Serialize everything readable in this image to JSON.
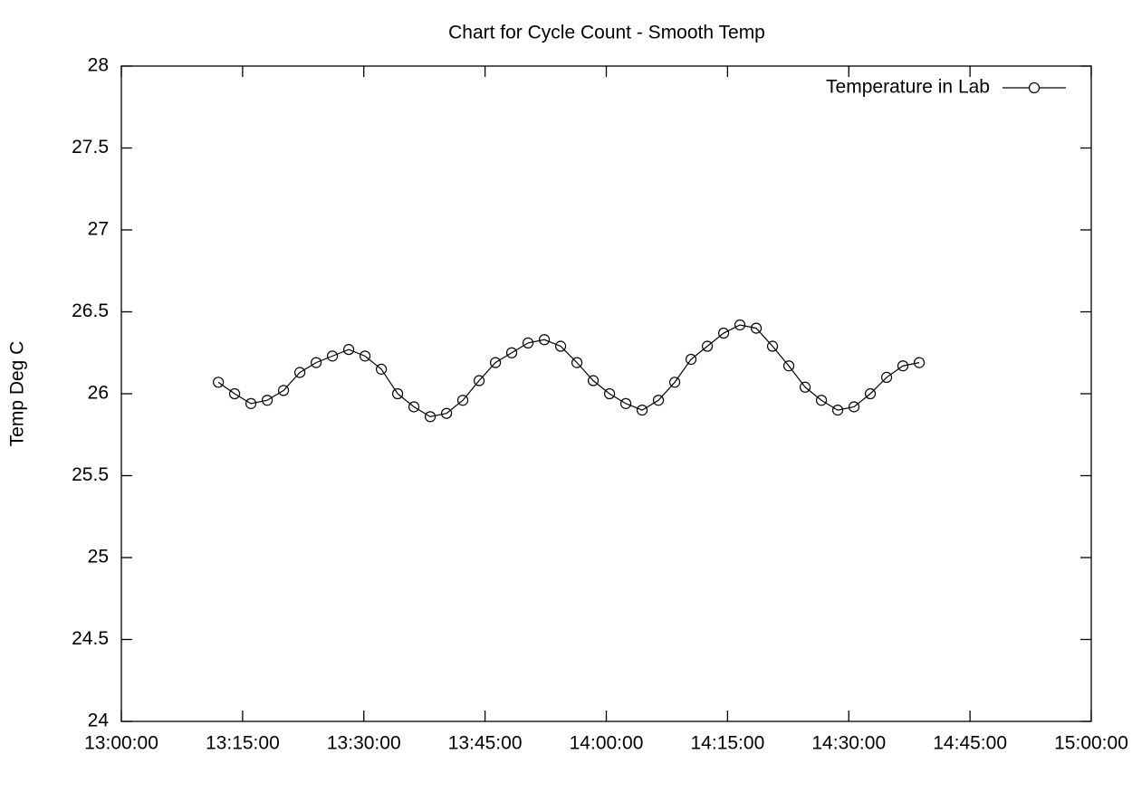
{
  "chart_data": {
    "type": "line",
    "title": "Chart for Cycle Count - Smooth Temp",
    "y_label": "Temp Deg C",
    "x": [
      "13:12:00",
      "13:14:01",
      "13:16:02",
      "13:18:03",
      "13:20:04",
      "13:22:05",
      "13:24:06",
      "13:26:07",
      "13:28:08",
      "13:30:09",
      "13:32:10",
      "13:34:11",
      "13:36:12",
      "13:38:13",
      "13:40:14",
      "13:42:15",
      "13:44:16",
      "13:46:17",
      "13:48:18",
      "13:50:19",
      "13:52:20",
      "13:54:21",
      "13:56:22",
      "13:58:23",
      "14:00:24",
      "14:02:25",
      "14:04:26",
      "14:06:27",
      "14:08:28",
      "14:10:29",
      "14:12:30",
      "14:14:31",
      "14:16:32",
      "14:18:33",
      "14:20:34",
      "14:22:35",
      "14:24:36",
      "14:26:37",
      "14:28:38",
      "14:30:39",
      "14:32:40",
      "14:34:41",
      "14:36:42",
      "14:38:43"
    ],
    "series": [
      {
        "name": "Temperature in Lab",
        "color": "#000000",
        "values": [
          26.07,
          26.0,
          25.94,
          25.96,
          26.02,
          26.13,
          26.19,
          26.23,
          26.27,
          26.23,
          26.15,
          26.0,
          25.92,
          25.86,
          25.88,
          25.96,
          26.08,
          26.19,
          26.25,
          26.31,
          26.33,
          26.29,
          26.19,
          26.08,
          26.0,
          25.94,
          25.9,
          25.96,
          26.07,
          26.21,
          26.29,
          26.37,
          26.42,
          26.4,
          26.29,
          26.17,
          26.04,
          25.96,
          25.9,
          25.92,
          26.0,
          26.1,
          26.17,
          26.19
        ]
      }
    ],
    "xlim": [
      "13:00:00",
      "15:00:00"
    ],
    "xticks": [
      "13:00:00",
      "13:15:00",
      "13:30:00",
      "13:45:00",
      "14:00:00",
      "14:15:00",
      "14:30:00",
      "14:45:00",
      "15:00:00"
    ],
    "ylim": [
      24,
      28
    ],
    "yticks": [
      24,
      24.5,
      25,
      25.5,
      26,
      26.5,
      27,
      27.5,
      28
    ],
    "legend": "top-right",
    "markers": "open-circle"
  }
}
